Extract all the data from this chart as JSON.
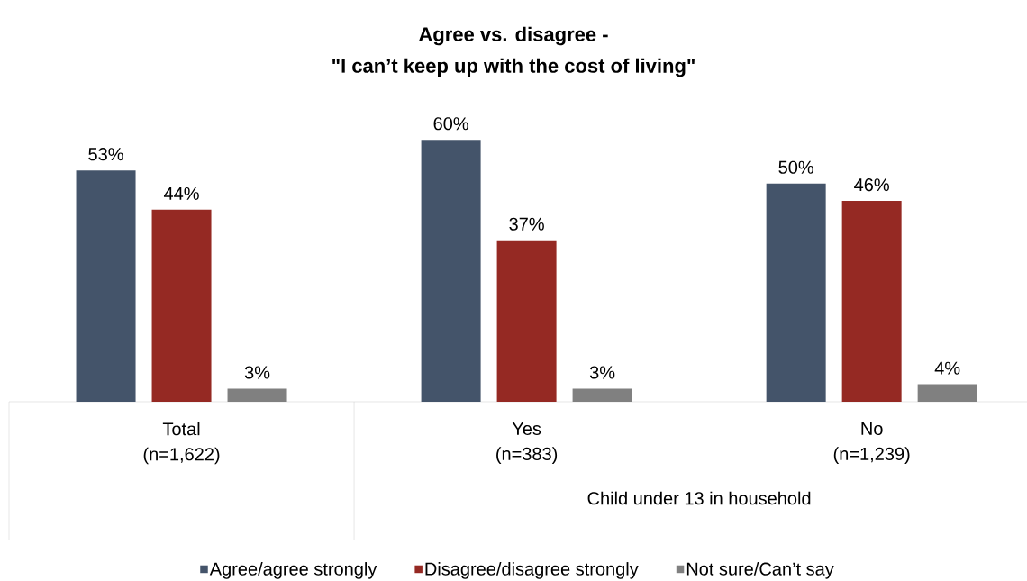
{
  "chart_data": {
    "type": "bar",
    "title": "Agree vs. disagree -",
    "subtitle": "\"I can’t keep up with the cost of living\"",
    "categories": [
      "Total (n=1,622)",
      "Yes (n=383)",
      "No (n=1,239)"
    ],
    "series": [
      {
        "name": "Agree/agree strongly",
        "color": "#44546a",
        "values": [
          53,
          60,
          50
        ],
        "value_labels": [
          "53%",
          "60%",
          "50%"
        ]
      },
      {
        "name": "Disagree/disagree strongly",
        "color": "#952923",
        "values": [
          44,
          37,
          46
        ],
        "value_labels": [
          "44%",
          "37%",
          "46%"
        ]
      },
      {
        "name": "Not sure/Can’t say",
        "color": "#808080",
        "values": [
          3,
          3,
          4
        ],
        "value_labels": [
          "3%",
          "3%",
          "4%"
        ]
      }
    ],
    "annotations": [
      "Child under 13 in household"
    ],
    "legend": "bottom"
  }
}
